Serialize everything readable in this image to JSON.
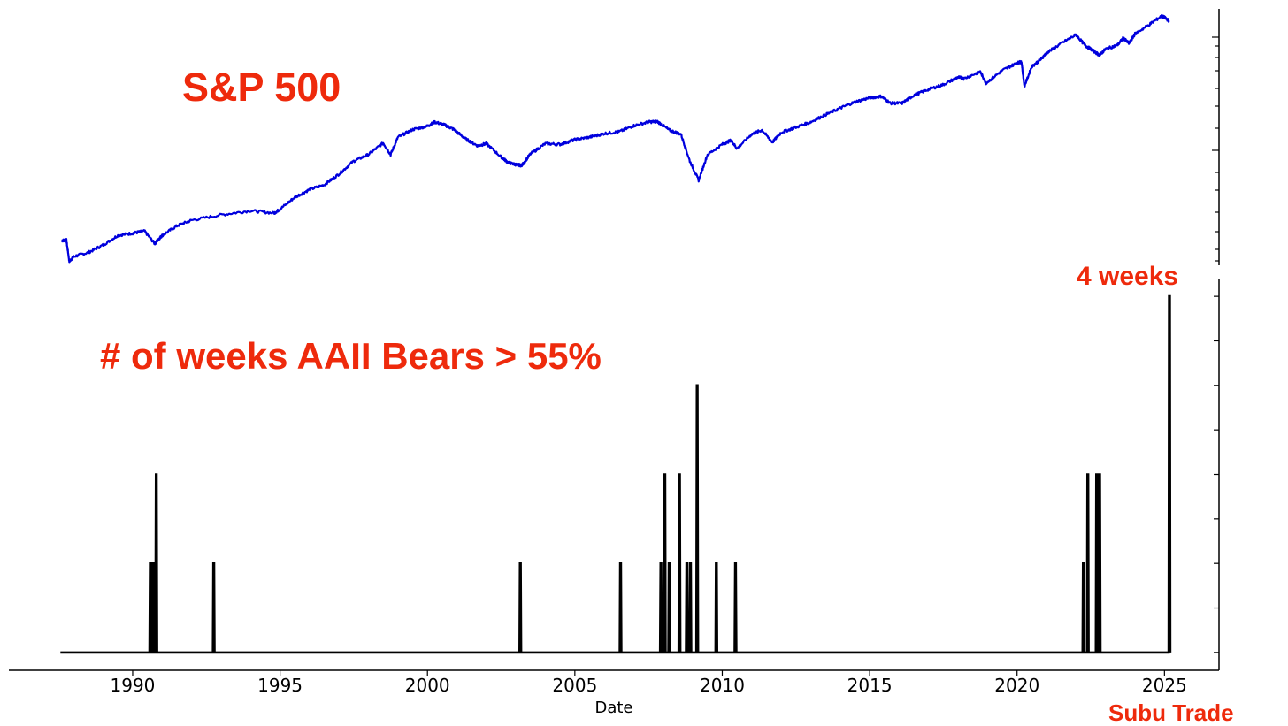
{
  "colors": {
    "accent_red": "#ee2a0c",
    "sp_line": "#0000dd",
    "count_line": "#000000",
    "axis": "#000000"
  },
  "labels": {
    "sp_title": "S&P 500",
    "bears_title": "# of weeks AAII Bears > 55%",
    "annotation": "4 weeks",
    "watermark": "Subu Trade"
  },
  "chart_data": [
    {
      "type": "line",
      "title": "S&P 500",
      "series": [],
      "x": [
        1987.6,
        1987.75,
        1987.85,
        1988.0,
        1988.5,
        1989.0,
        1989.5,
        1990.0,
        1990.4,
        1990.75,
        1990.85,
        1991.0,
        1991.5,
        1992.0,
        1993.0,
        1994.0,
        1994.8,
        1995.0,
        1995.5,
        1996.0,
        1996.5,
        1997.0,
        1997.5,
        1998.0,
        1998.5,
        1998.75,
        1999.0,
        1999.5,
        2000.0,
        2000.25,
        2000.6,
        2000.9,
        2001.3,
        2001.7,
        2002.0,
        2002.5,
        2002.75,
        2003.0,
        2003.2,
        2003.5,
        2004.0,
        2004.5,
        2005.0,
        2005.5,
        2006.0,
        2006.5,
        2007.0,
        2007.5,
        2007.8,
        2008.2,
        2008.6,
        2008.9,
        2009.2,
        2009.5,
        2010.0,
        2010.3,
        2010.5,
        2011.0,
        2011.35,
        2011.7,
        2012.0,
        2012.5,
        2013.0,
        2013.5,
        2014.0,
        2014.5,
        2015.0,
        2015.4,
        2015.7,
        2016.1,
        2016.5,
        2017.0,
        2017.5,
        2018.0,
        2018.2,
        2018.75,
        2018.95,
        2019.5,
        2020.0,
        2020.15,
        2020.25,
        2020.5,
        2020.8,
        2021.0,
        2021.5,
        2022.0,
        2022.3,
        2022.5,
        2022.8,
        2023.0,
        2023.4,
        2023.6,
        2023.8,
        2024.0,
        2024.5,
        2024.9,
        2025.0,
        2025.15
      ],
      "values": [
        318,
        320,
        242,
        258,
        272,
        300,
        340,
        350,
        360,
        305,
        320,
        340,
        385,
        415,
        445,
        470,
        455,
        480,
        560,
        620,
        660,
        760,
        900,
        980,
        1140,
        980,
        1230,
        1360,
        1420,
        1500,
        1440,
        1360,
        1200,
        1100,
        1130,
        950,
        880,
        860,
        850,
        990,
        1130,
        1120,
        1190,
        1230,
        1290,
        1320,
        1430,
        1500,
        1510,
        1350,
        1280,
        900,
        700,
        980,
        1120,
        1180,
        1060,
        1280,
        1350,
        1150,
        1310,
        1400,
        1500,
        1650,
        1800,
        1950,
        2060,
        2100,
        1920,
        1920,
        2130,
        2300,
        2450,
        2700,
        2650,
        2900,
        2500,
        2950,
        3250,
        3300,
        2400,
        3100,
        3400,
        3700,
        4200,
        4700,
        4100,
        3900,
        3600,
        3900,
        4100,
        4500,
        4200,
        4750,
        5400,
        6000,
        5900,
        5650
      ],
      "ylim": [
        230,
        6600
      ],
      "yscale": "log"
    },
    {
      "type": "line",
      "xlabel": "Date",
      "ylabel": "",
      "xlim": [
        1985.8,
        2026.85
      ],
      "ylim": [
        -0.2,
        4.2
      ],
      "x_ticks": [
        "1990",
        "1995",
        "2000",
        "2005",
        "2010",
        "2015",
        "2020",
        "2025"
      ],
      "y_ticks": [
        0,
        0.5,
        1,
        1.5,
        2,
        2.5,
        3,
        3.5,
        4
      ],
      "series": [],
      "baseline_start": 1987.55,
      "baseline_end": 2025.1,
      "spikes": [
        {
          "x": 1990.6,
          "value": 1
        },
        {
          "x": 1990.7,
          "value": 1
        },
        {
          "x": 1990.8,
          "value": 2
        },
        {
          "x": 1992.75,
          "value": 1
        },
        {
          "x": 2003.15,
          "value": 1
        },
        {
          "x": 2006.55,
          "value": 1
        },
        {
          "x": 2007.92,
          "value": 1
        },
        {
          "x": 2008.05,
          "value": 2
        },
        {
          "x": 2008.2,
          "value": 1
        },
        {
          "x": 2008.55,
          "value": 2
        },
        {
          "x": 2008.8,
          "value": 1
        },
        {
          "x": 2008.92,
          "value": 1
        },
        {
          "x": 2009.15,
          "value": 3
        },
        {
          "x": 2009.8,
          "value": 1
        },
        {
          "x": 2010.45,
          "value": 1
        },
        {
          "x": 2022.25,
          "value": 1
        },
        {
          "x": 2022.4,
          "value": 2
        },
        {
          "x": 2022.7,
          "value": 2
        },
        {
          "x": 2022.8,
          "value": 2
        },
        {
          "x": 2025.17,
          "value": 4
        }
      ]
    }
  ]
}
